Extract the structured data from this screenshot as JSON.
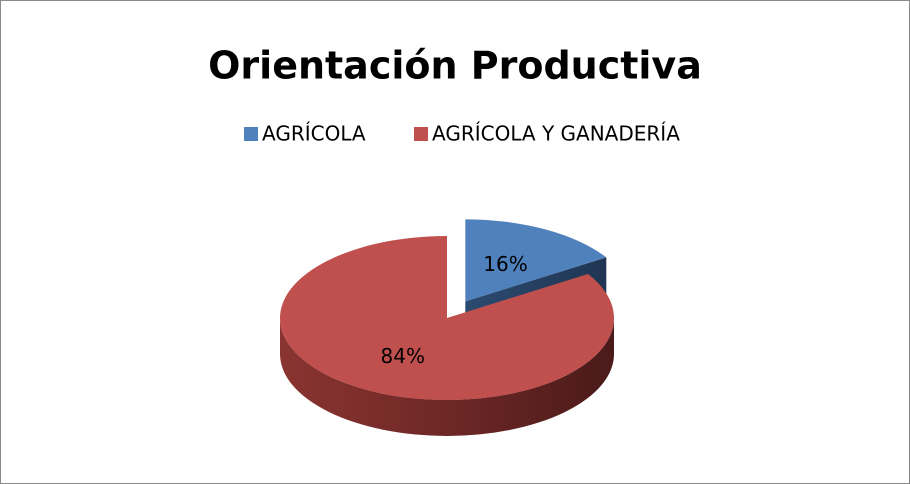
{
  "chart_data": {
    "type": "pie",
    "title": "Orientación Productiva",
    "categories": [
      "AGRÍCOLA",
      "AGRÍCOLA Y GANADERÍA"
    ],
    "values": [
      16,
      84
    ],
    "value_labels": [
      "16%",
      "84%"
    ],
    "colors": [
      "#4f81bd",
      "#c0504d"
    ],
    "legend": "top"
  }
}
